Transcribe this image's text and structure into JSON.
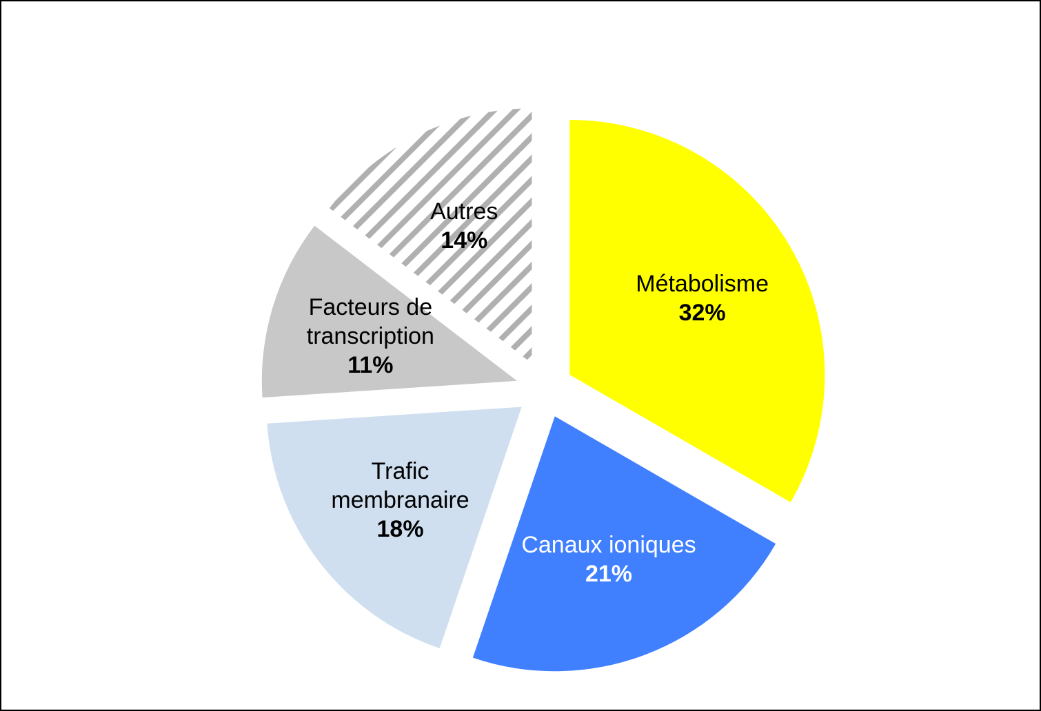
{
  "chart_data": {
    "type": "pie",
    "categories": [
      "Métabolisme",
      "Canaux ioniques",
      "Trafic membranaire",
      "Facteurs de transcription",
      "Autres"
    ],
    "values": [
      32,
      21,
      18,
      11,
      14
    ],
    "value_labels": [
      "32%",
      "21%",
      "18%",
      "11%",
      "14%"
    ],
    "colors": [
      "#ffff00",
      "#4080ff",
      "#cfdff0",
      "#c8c8c8",
      "#ffffff"
    ],
    "hatched": [
      false,
      false,
      false,
      false,
      true
    ],
    "label_colors": [
      "#000000",
      "#ffffff",
      "#000000",
      "#000000",
      "#000000"
    ]
  }
}
